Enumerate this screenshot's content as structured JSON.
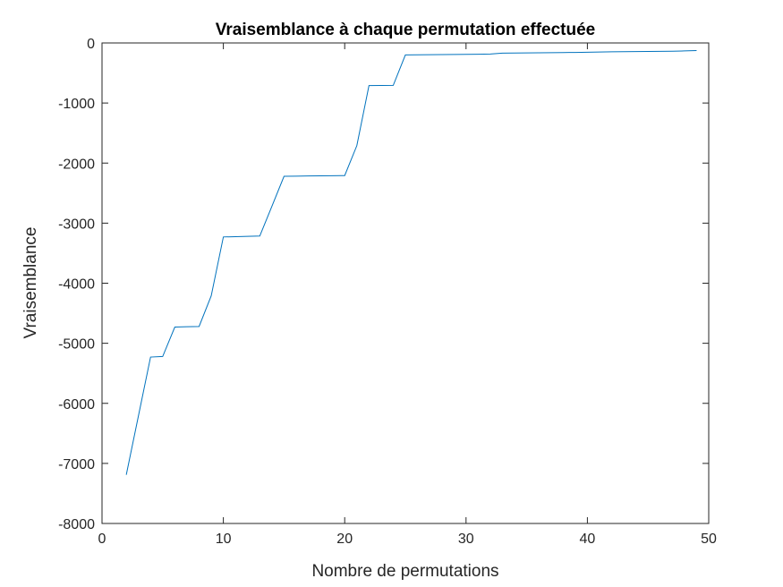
{
  "chart_data": {
    "type": "line",
    "title": "Vraisemblance à chaque permutation effectuée",
    "xlabel": "Nombre de permutations",
    "ylabel": "Vraisemblance",
    "xlim": [
      0,
      50
    ],
    "ylim": [
      -8000,
      0
    ],
    "xticks": [
      0,
      10,
      20,
      30,
      40,
      50
    ],
    "yticks": [
      0,
      -1000,
      -2000,
      -3000,
      -4000,
      -5000,
      -6000,
      -7000,
      -8000
    ],
    "xtick_labels": [
      "0",
      "10",
      "20",
      "30",
      "40",
      "50"
    ],
    "ytick_labels": [
      "0",
      "-1000",
      "-2000",
      "-3000",
      "-4000",
      "-5000",
      "-6000",
      "-7000",
      "-8000"
    ],
    "grid": false,
    "line_color": "#0072BD",
    "series": [
      {
        "x": [
          2,
          3,
          4,
          5,
          6,
          7,
          8,
          9,
          10,
          11,
          12,
          13,
          14,
          15,
          16,
          17,
          18,
          19,
          20,
          21,
          22,
          23,
          24,
          25,
          26,
          27,
          28,
          29,
          30,
          31,
          32,
          33,
          34,
          35,
          36,
          37,
          38,
          39,
          40,
          41,
          42,
          43,
          44,
          45,
          46,
          47,
          48,
          49
        ],
        "y": [
          -7190,
          -6210,
          -5230,
          -5220,
          -4730,
          -4725,
          -4720,
          -4210,
          -3230,
          -3225,
          -3220,
          -3215,
          -2720,
          -2220,
          -2218,
          -2215,
          -2212,
          -2210,
          -2208,
          -1710,
          -710,
          -708,
          -706,
          -200,
          -198,
          -196,
          -194,
          -192,
          -190,
          -188,
          -184,
          -170,
          -168,
          -166,
          -164,
          -162,
          -160,
          -158,
          -155,
          -150,
          -147,
          -145,
          -143,
          -141,
          -139,
          -137,
          -133,
          -127
        ]
      }
    ]
  }
}
